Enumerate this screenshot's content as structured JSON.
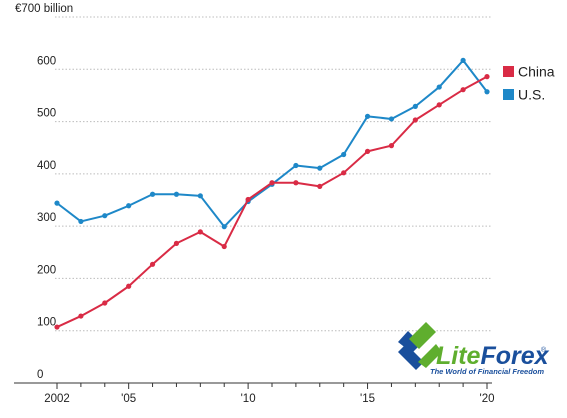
{
  "chart_data": {
    "type": "line",
    "title": "",
    "xlabel": "",
    "ylabel": "",
    "y_unit_label": "€700 billion",
    "x": [
      2002,
      2003,
      2004,
      2005,
      2006,
      2007,
      2008,
      2009,
      2010,
      2011,
      2012,
      2013,
      2014,
      2015,
      2016,
      2017,
      2018,
      2019,
      2020
    ],
    "xlim": [
      2002,
      2020
    ],
    "ylim": [
      0,
      700
    ],
    "x_ticks": [
      {
        "value": 2002,
        "label": "2002"
      },
      {
        "value": 2005,
        "label": "'05"
      },
      {
        "value": 2010,
        "label": "'10"
      },
      {
        "value": 2015,
        "label": "'15"
      },
      {
        "value": 2020,
        "label": "'20"
      }
    ],
    "y_ticks": [
      {
        "value": 0,
        "label": "0"
      },
      {
        "value": 100,
        "label": "100"
      },
      {
        "value": 200,
        "label": "200"
      },
      {
        "value": 300,
        "label": "300"
      },
      {
        "value": 400,
        "label": "400"
      },
      {
        "value": 500,
        "label": "500"
      },
      {
        "value": 600,
        "label": "600"
      }
    ],
    "grid": "horizontal-dotted",
    "legend_position": "right",
    "series": [
      {
        "name": "China",
        "color": "#d92b45",
        "values": [
          107,
          128,
          153,
          185,
          227,
          267,
          289,
          261,
          351,
          383,
          383,
          376,
          402,
          443,
          454,
          503,
          532,
          561,
          586
        ]
      },
      {
        "name": "U.S.",
        "color": "#1e88c8",
        "values": [
          344,
          309,
          320,
          339,
          361,
          361,
          358,
          299,
          347,
          380,
          416,
          411,
          437,
          510,
          505,
          529,
          566,
          617,
          557
        ]
      }
    ]
  },
  "watermark": {
    "brand_part1": "Lite",
    "brand_part2": "Forex",
    "registered": "®",
    "tagline": "The World of Financial Freedom",
    "color_part1": "#5fae2e",
    "color_part2": "#1a4f9c",
    "icon": "double-arrow-logo-icon"
  }
}
